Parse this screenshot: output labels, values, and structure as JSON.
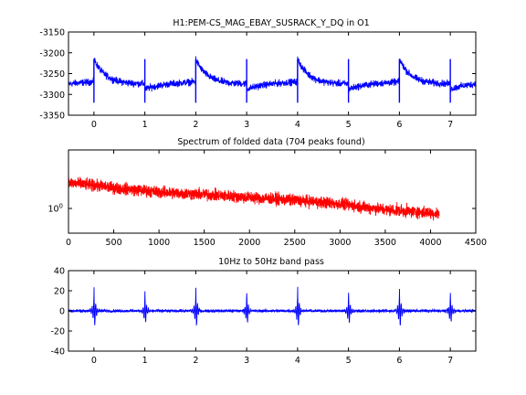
{
  "chart_data": [
    {
      "type": "line",
      "title": "H1:PEM-CS_MAG_EBAY_SUSRACK_Y_DQ in O1",
      "xlabel": "",
      "ylabel": "",
      "xlim": [
        -0.5,
        7.5
      ],
      "ylim": [
        -3350,
        -3150
      ],
      "xticks": [
        "0",
        "1",
        "2",
        "3",
        "4",
        "5",
        "6",
        "7"
      ],
      "xtick_values": [
        0,
        1,
        2,
        3,
        4,
        5,
        6,
        7
      ],
      "yticks": [
        "-3350",
        "-3300",
        "-3250",
        "-3200",
        "-3150"
      ],
      "ytick_values": [
        -3350,
        -3300,
        -3250,
        -3200,
        -3150
      ],
      "grid": false,
      "color": "#0000ff",
      "series": [
        {
          "baseline": -3275,
          "noise_amplitude": 12,
          "period": 1,
          "spike_times": [
            0,
            1,
            2,
            3,
            4,
            5,
            6,
            7
          ],
          "spike_range": [
            -3320,
            -3215
          ],
          "step_peak_times": [
            0,
            2,
            4,
            6
          ],
          "step_peak_value": -3215,
          "trough_times": [
            1,
            3,
            5,
            7
          ],
          "trough_value": -3300
        }
      ]
    },
    {
      "type": "line",
      "title": "Spectrum of folded data (704 peaks found)",
      "xlabel": "",
      "ylabel": "",
      "xlim": [
        0,
        4500
      ],
      "yscale": "log",
      "xticks": [
        "0",
        "500",
        "1000",
        "1500",
        "2000",
        "2500",
        "3000",
        "3500",
        "4000",
        "4500"
      ],
      "xtick_values": [
        0,
        500,
        1000,
        1500,
        2000,
        2500,
        3000,
        3500,
        4000,
        4500
      ],
      "yticks": [
        "10^0"
      ],
      "ytick_values": [
        1
      ],
      "grid": false,
      "color": "#ff0000",
      "series": [
        {
          "x_end": 4096,
          "level_points": [
            [
              0,
              3.0
            ],
            [
              500,
              2.4
            ],
            [
              1000,
              2.0
            ],
            [
              2000,
              1.6
            ],
            [
              2800,
              1.3
            ],
            [
              3000,
              1.2
            ],
            [
              3500,
              0.95
            ],
            [
              4096,
              0.8
            ]
          ],
          "initial_peak": 10
        }
      ]
    },
    {
      "type": "line",
      "title": "10Hz to 50Hz band pass",
      "xlabel": "",
      "ylabel": "",
      "xlim": [
        -0.5,
        7.5
      ],
      "ylim": [
        -40,
        40
      ],
      "xticks": [
        "0",
        "1",
        "2",
        "3",
        "4",
        "5",
        "6",
        "7"
      ],
      "xtick_values": [
        0,
        1,
        2,
        3,
        4,
        5,
        6,
        7
      ],
      "yticks": [
        "-40",
        "-20",
        "0",
        "20",
        "40"
      ],
      "ytick_values": [
        -40,
        -20,
        0,
        20,
        40
      ],
      "grid": false,
      "color": "#0000ff",
      "series": [
        {
          "spike_times": [
            0,
            1,
            2,
            3,
            4,
            5,
            6,
            7
          ],
          "spike_amplitudes": [
            25,
            20,
            25,
            20,
            25,
            20,
            25,
            20
          ],
          "noise_amplitude": 2
        }
      ]
    }
  ]
}
